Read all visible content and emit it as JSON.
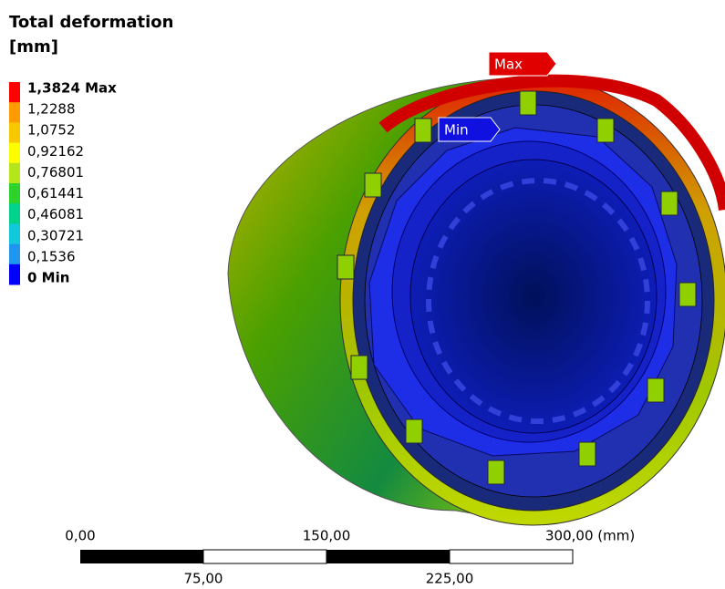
{
  "header": {
    "title": "Total deformation",
    "unit": "[mm]"
  },
  "legend": {
    "labels": [
      "1,3824 Max",
      "1,2288",
      "1,0752",
      "0,92162",
      "0,76801",
      "0,61441",
      "0,46081",
      "0,30721",
      "0,1536",
      "0 Min"
    ],
    "colors": [
      "#ff0000",
      "#ff9a00",
      "#f5c800",
      "#ffff00",
      "#b4e61e",
      "#2dd22d",
      "#00d28c",
      "#14c8dc",
      "#1e96f0",
      "#0000ff"
    ]
  },
  "probes": {
    "max": "Max",
    "min": "Min"
  },
  "scale_bar": {
    "top_labels": [
      "0,00",
      "150,00",
      "300,00 (mm)"
    ],
    "bottom_labels": [
      "75,00",
      "225,00"
    ]
  }
}
